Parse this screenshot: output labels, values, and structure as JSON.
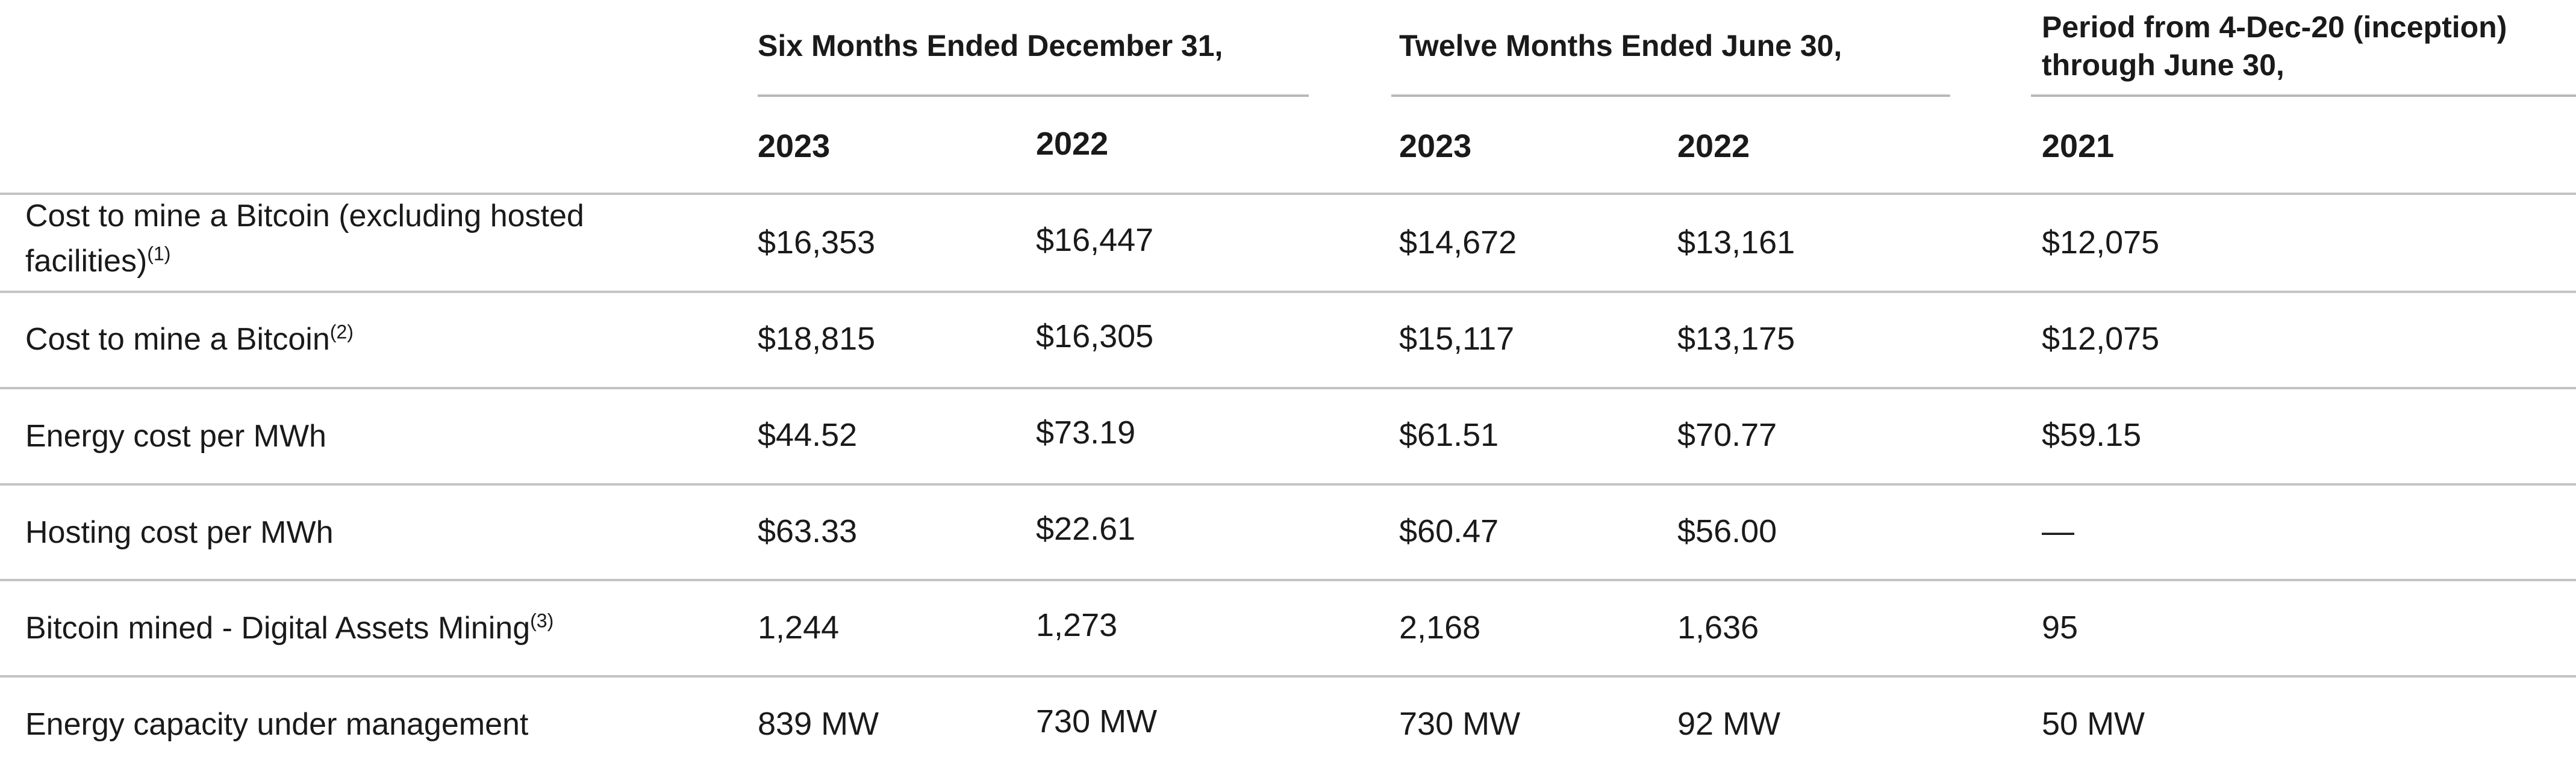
{
  "header": {
    "group_six": "Six Months Ended December 31,",
    "group_twelve": "Twelve Months Ended June 30,",
    "group_period_line1": "Period from 4-Dec-20 (inception)",
    "group_period_line2": "through June 30,",
    "years": [
      "2023",
      "2022",
      "2023",
      "2022",
      "2021"
    ]
  },
  "rows": [
    {
      "label_line1": "Cost to mine a Bitcoin (excluding hosted",
      "label_line2": "facilities)",
      "footnote": "(1)",
      "values": [
        "$16,353",
        "$16,447",
        "$14,672",
        "$13,161",
        "$12,075"
      ]
    },
    {
      "label": "Cost to mine a Bitcoin",
      "footnote": "(2)",
      "values": [
        "$18,815",
        "$16,305",
        "$15,117",
        "$13,175",
        "$12,075"
      ]
    },
    {
      "label": "Energy cost per MWh",
      "values": [
        "$44.52",
        "$73.19",
        "$61.51",
        "$70.77",
        "$59.15"
      ]
    },
    {
      "label": "Hosting cost per MWh",
      "values": [
        "$63.33",
        "$22.61",
        "$60.47",
        "$56.00",
        "—"
      ]
    },
    {
      "label": "Bitcoin mined - Digital Assets Mining",
      "footnote": "(3)",
      "values": [
        "1,244",
        "1,273",
        "2,168",
        "1,636",
        "95"
      ]
    },
    {
      "label": "Energy capacity under management",
      "values": [
        "839 MW",
        "730 MW",
        "730 MW",
        "92 MW",
        "50 MW"
      ]
    }
  ]
}
